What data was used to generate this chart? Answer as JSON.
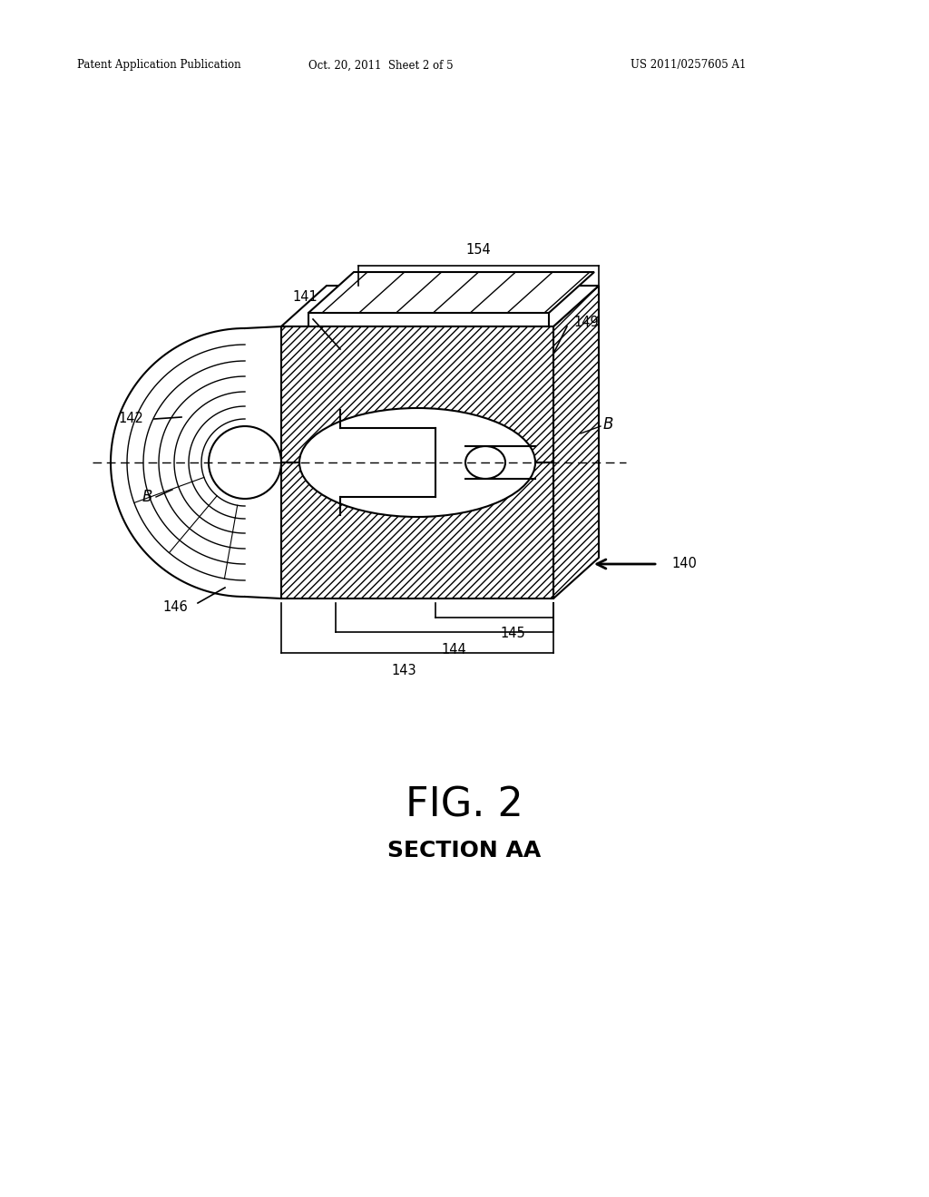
{
  "bg_color": "#ffffff",
  "header_left": "Patent Application Publication",
  "header_mid": "Oct. 20, 2011  Sheet 2 of 5",
  "header_right": "US 2011/0257605 A1",
  "fig_label": "FIG. 2",
  "fig_sublabel": "SECTION AA",
  "line_color": "#000000"
}
